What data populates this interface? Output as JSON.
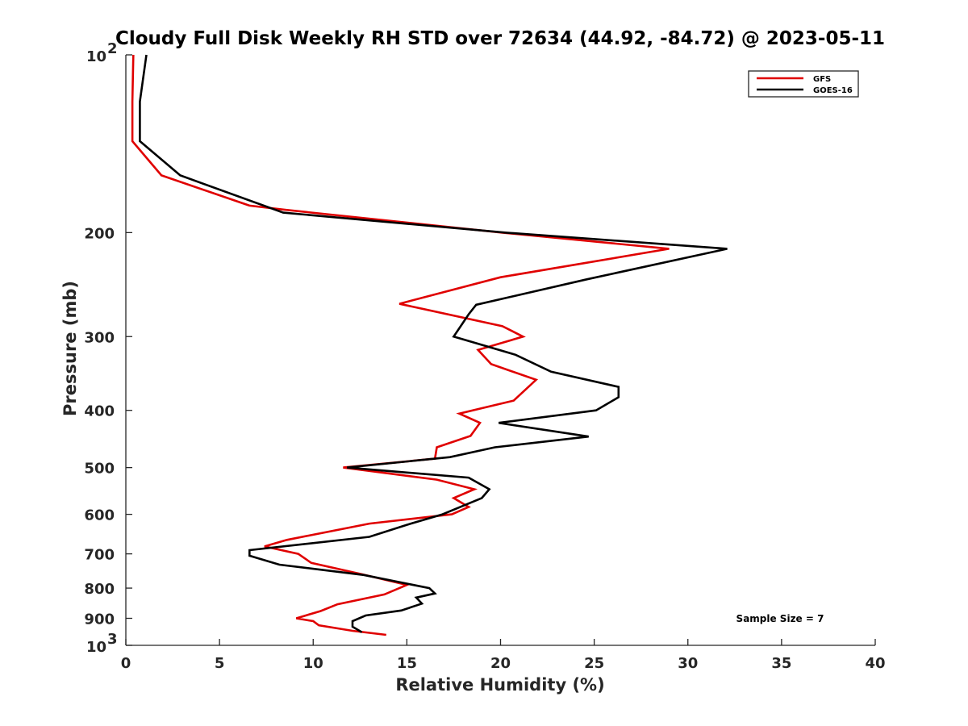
{
  "chart_data": {
    "type": "line",
    "title": "Cloudy Full Disk Weekly RH STD over 72634 (44.92, -84.72) @ 2023-05-11",
    "xlabel": "Relative Humidity (%)",
    "ylabel": "Pressure (mb)",
    "xlim": [
      0,
      40
    ],
    "ylim": [
      100,
      1000
    ],
    "yscale": "log",
    "y_reversed": true,
    "x_ticks": [
      "0",
      "5",
      "10",
      "15",
      "20",
      "25",
      "30",
      "35",
      "40"
    ],
    "y_ticks": [
      {
        "value": 100,
        "label": "10",
        "sup": "2"
      },
      {
        "value": 200,
        "label": "200"
      },
      {
        "value": 300,
        "label": "300"
      },
      {
        "value": 400,
        "label": "400"
      },
      {
        "value": 500,
        "label": "500"
      },
      {
        "value": 600,
        "label": "600"
      },
      {
        "value": 700,
        "label": "700"
      },
      {
        "value": 800,
        "label": "800"
      },
      {
        "value": 900,
        "label": "900"
      },
      {
        "value": 1000,
        "label": "10",
        "sup": "3"
      }
    ],
    "legend_position": "top-right",
    "grid": false,
    "series": [
      {
        "name": "GFS",
        "color": "#e00000",
        "points": [
          [
            0.4,
            100
          ],
          [
            0.35,
            120
          ],
          [
            0.35,
            140
          ],
          [
            1.9,
            160
          ],
          [
            6.6,
            180
          ],
          [
            8.5,
            183
          ],
          [
            20.1,
            200
          ],
          [
            29.0,
            213
          ],
          [
            20.0,
            238
          ],
          [
            14.6,
            264
          ],
          [
            20.1,
            288
          ],
          [
            21.2,
            300
          ],
          [
            18.8,
            316
          ],
          [
            19.5,
            334
          ],
          [
            21.9,
            355
          ],
          [
            20.7,
            385
          ],
          [
            17.8,
            405
          ],
          [
            18.9,
            420
          ],
          [
            18.4,
            442
          ],
          [
            16.6,
            462
          ],
          [
            16.5,
            483
          ],
          [
            11.6,
            500
          ],
          [
            16.6,
            524
          ],
          [
            18.6,
            544
          ],
          [
            17.5,
            563
          ],
          [
            18.3,
            583
          ],
          [
            17.4,
            600
          ],
          [
            13.0,
            622
          ],
          [
            8.6,
            663
          ],
          [
            7.4,
            680
          ],
          [
            9.2,
            700
          ],
          [
            9.9,
            725
          ],
          [
            12.6,
            758
          ],
          [
            15.0,
            790
          ],
          [
            13.8,
            820
          ],
          [
            11.3,
            852
          ],
          [
            10.4,
            875
          ],
          [
            9.1,
            900
          ],
          [
            10.0,
            910
          ],
          [
            10.3,
            925
          ],
          [
            12.1,
            945
          ],
          [
            13.9,
            960
          ]
        ]
      },
      {
        "name": "GOES-16",
        "color": "#000000",
        "points": [
          [
            1.1,
            100
          ],
          [
            0.75,
            120
          ],
          [
            0.75,
            140
          ],
          [
            2.9,
            160
          ],
          [
            8.4,
            185
          ],
          [
            20.3,
            200
          ],
          [
            32.1,
            213
          ],
          [
            24.6,
            240
          ],
          [
            18.7,
            265
          ],
          [
            18.3,
            275
          ],
          [
            17.5,
            300
          ],
          [
            20.8,
            322
          ],
          [
            22.7,
            344
          ],
          [
            26.3,
            365
          ],
          [
            26.3,
            380
          ],
          [
            25.1,
            400
          ],
          [
            19.9,
            420
          ],
          [
            24.7,
            443
          ],
          [
            19.7,
            462
          ],
          [
            17.3,
            480
          ],
          [
            11.8,
            500
          ],
          [
            18.3,
            520
          ],
          [
            19.4,
            544
          ],
          [
            19.0,
            563
          ],
          [
            16.9,
            600
          ],
          [
            15.0,
            625
          ],
          [
            13.0,
            655
          ],
          [
            6.6,
            690
          ],
          [
            6.6,
            705
          ],
          [
            8.2,
            730
          ],
          [
            12.7,
            760
          ],
          [
            16.2,
            800
          ],
          [
            16.5,
            817
          ],
          [
            15.5,
            830
          ],
          [
            15.8,
            850
          ],
          [
            14.7,
            873
          ],
          [
            12.8,
            890
          ],
          [
            12.1,
            910
          ],
          [
            12.1,
            930
          ],
          [
            12.6,
            950
          ]
        ]
      }
    ],
    "annotations": [
      {
        "text": "Sample Size = 7"
      }
    ]
  }
}
